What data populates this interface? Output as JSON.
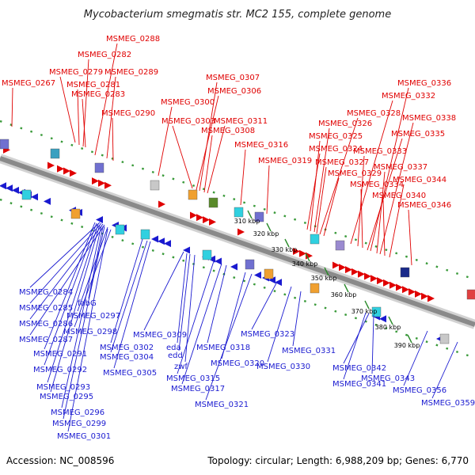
{
  "title": "Mycobacterium smegmatis str. MC2 155, complete genome",
  "footer": {
    "accession": "Accession: NC_008596",
    "summary": "Topology: circular; Length: 6,988,209 bp; Genes: 6,770"
  },
  "colors": {
    "forward_strand": "#e00000",
    "reverse_strand": "#1a1ad0",
    "backbone": "#8a8a8a",
    "ruler_dots": "#3a9a3a"
  },
  "ruler": {
    "ticks": [
      "310 kbp",
      "320 kbp",
      "330 kbp",
      "340 kbp",
      "350 kbp",
      "360 kbp",
      "370 kbp",
      "380 kbp",
      "390 kbp"
    ]
  },
  "genes_top": [
    "MSMEG_0267",
    "MSMEG_0279",
    "MSMEG_0281",
    "MSMEG_0282",
    "MSMEG_0283",
    "MSMEG_0288",
    "MSMEG_0289",
    "MSMEG_0290",
    "MSMEG_0300",
    "MSMEG_0303",
    "MSMEG_0306",
    "MSMEG_0307",
    "MSMEG_0308",
    "MSMEG_0311",
    "MSMEG_0316",
    "MSMEG_0319",
    "MSMEG_0324",
    "MSMEG_0325",
    "MSMEG_0326",
    "MSMEG_0327",
    "MSMEG_0328",
    "MSMEG_0329",
    "MSMEG_0332",
    "MSMEG_0333",
    "MSMEG_0334",
    "MSMEG_0335",
    "MSMEG_0336",
    "MSMEG_0337",
    "MSMEG_0338",
    "MSMEG_0340",
    "MSMEG_0344",
    "MSMEG_0346"
  ],
  "genes_bottom": [
    "MSMEG_0284",
    "MSMEG_0285",
    "MSMEG_0286",
    "MSMEG_0287",
    "fabG",
    "MSMEG_0297",
    "MSMEG_0298",
    "MSMEG_0291",
    "MSMEG_0292",
    "MSMEG_0293",
    "MSMEG_0295",
    "MSMEG_0296",
    "MSMEG_0299",
    "MSMEG_0301",
    "MSMEG_0302",
    "MSMEG_0304",
    "MSMEG_0305",
    "MSMEG_0309",
    "eda",
    "edd",
    "zwf",
    "MSMEG_0315",
    "MSMEG_0317",
    "MSMEG_0318",
    "MSMEG_0320",
    "MSMEG_0321",
    "MSMEG_0323",
    "MSMEG_0330",
    "MSMEG_0331",
    "MSMEG_0341",
    "MSMEG_0342",
    "MSMEG_0343",
    "MSMEG_0356",
    "MSMEG_0359"
  ]
}
